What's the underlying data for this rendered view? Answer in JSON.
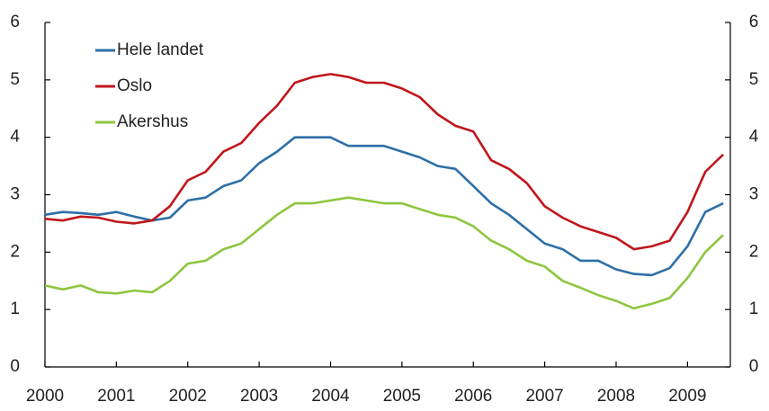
{
  "chart_data": {
    "type": "line",
    "x": [
      2000,
      2000.25,
      2000.5,
      2000.75,
      2001,
      2001.25,
      2001.5,
      2001.75,
      2002,
      2002.25,
      2002.5,
      2002.75,
      2003,
      2003.25,
      2003.5,
      2003.75,
      2004,
      2004.25,
      2004.5,
      2004.75,
      2005,
      2005.25,
      2005.5,
      2005.75,
      2006,
      2006.25,
      2006.5,
      2006.75,
      2007,
      2007.25,
      2007.5,
      2007.75,
      2008,
      2008.25,
      2008.5,
      2008.75,
      2009,
      2009.25,
      2009.5
    ],
    "series": [
      {
        "name": "Hele landet",
        "color": "#2e6fa7",
        "values": [
          2.65,
          2.7,
          2.68,
          2.65,
          2.7,
          2.62,
          2.55,
          2.6,
          2.9,
          2.95,
          3.15,
          3.25,
          3.55,
          3.75,
          4.0,
          4.0,
          4.0,
          3.85,
          3.85,
          3.85,
          3.75,
          3.65,
          3.5,
          3.45,
          3.15,
          2.85,
          2.65,
          2.4,
          2.15,
          2.05,
          1.85,
          1.85,
          1.7,
          1.62,
          1.6,
          1.72,
          2.1,
          2.7,
          2.85
        ]
      },
      {
        "name": "Oslo",
        "color": "#c0161c",
        "values": [
          2.58,
          2.55,
          2.62,
          2.6,
          2.53,
          2.5,
          2.55,
          2.8,
          3.25,
          3.4,
          3.75,
          3.9,
          4.25,
          4.55,
          4.95,
          5.05,
          5.1,
          5.05,
          4.95,
          4.95,
          4.85,
          4.7,
          4.4,
          4.2,
          4.1,
          3.6,
          3.45,
          3.2,
          2.8,
          2.6,
          2.45,
          2.35,
          2.25,
          2.05,
          2.1,
          2.2,
          2.7,
          3.4,
          3.7
        ]
      },
      {
        "name": "Akershus",
        "color": "#8dc63f",
        "values": [
          1.42,
          1.35,
          1.42,
          1.3,
          1.28,
          1.33,
          1.3,
          1.5,
          1.8,
          1.85,
          2.05,
          2.15,
          2.4,
          2.65,
          2.85,
          2.85,
          2.9,
          2.95,
          2.9,
          2.85,
          2.85,
          2.75,
          2.65,
          2.6,
          2.45,
          2.2,
          2.05,
          1.85,
          1.75,
          1.5,
          1.38,
          1.25,
          1.15,
          1.02,
          1.1,
          1.2,
          1.55,
          2.0,
          2.3
        ]
      }
    ],
    "xlim": [
      2000,
      2009.6
    ],
    "xticks": [
      2000,
      2001,
      2002,
      2003,
      2004,
      2005,
      2006,
      2007,
      2008,
      2009
    ],
    "ylim": [
      0,
      6
    ],
    "yticks": [
      0,
      1,
      2,
      3,
      4,
      5,
      6
    ],
    "y2lim": [
      0,
      6
    ],
    "y2ticks": [
      0,
      1,
      2,
      3,
      4,
      5,
      6
    ],
    "legend": "upper left"
  }
}
